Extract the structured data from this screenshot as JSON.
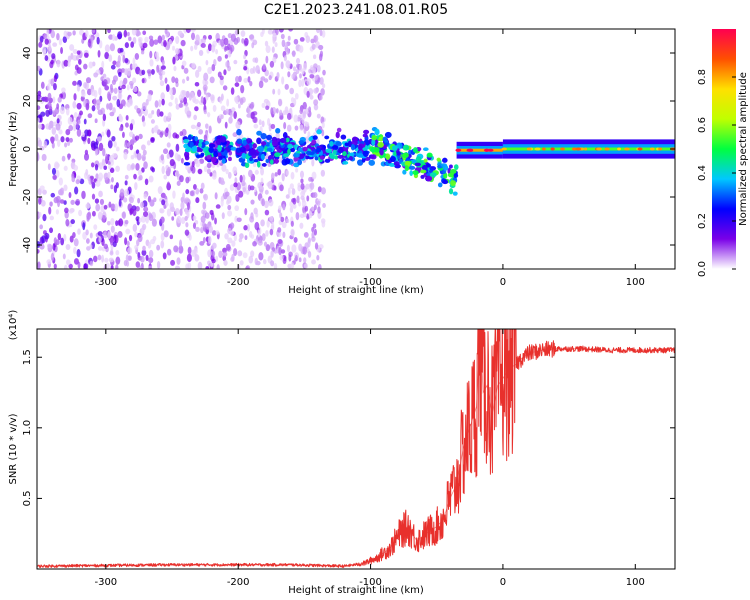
{
  "title": "C2E1.2023.241.08.01.R05",
  "chart_data": [
    {
      "type": "heatmap",
      "xlabel": "Height of straight line (km)",
      "ylabel": "Frequency (Hz)",
      "xlim": [
        -352,
        130
      ],
      "ylim": [
        -50,
        50
      ],
      "x_ticks": [
        -300,
        -200,
        -100,
        0,
        100
      ],
      "y_ticks": [
        -40,
        -20,
        0,
        20,
        40
      ],
      "colorbar": {
        "label": "Normalized spectral amplitude",
        "range": [
          0,
          1
        ],
        "ticks": [
          "0.0",
          "0.2",
          "0.4",
          "0.6",
          "0.8"
        ],
        "tick_values": [
          0.0,
          0.2,
          0.4,
          0.6,
          0.8
        ],
        "colors": [
          "#ffffff",
          "#7a00e8",
          "#0000ff",
          "#00c8ff",
          "#00ff40",
          "#c0ff00",
          "#ffe000",
          "#ff5000",
          "#ff0050"
        ]
      },
      "regions": [
        {
          "x_from": -352,
          "x_to": -135,
          "f_band": [
            -50,
            50
          ],
          "amplitude": 0.05,
          "pattern": "scattered noise"
        },
        {
          "x_from": -240,
          "x_to": -100,
          "f_band": [
            -6,
            6
          ],
          "amplitude": 0.35,
          "pattern": "noisy band"
        },
        {
          "x_from": -100,
          "x_to": -35,
          "f_band": [
            -22,
            5
          ],
          "amplitude": 0.45,
          "pattern": "descending band"
        },
        {
          "x_from": -35,
          "x_to": 0,
          "f_band": [
            -4,
            3
          ],
          "amplitude": 0.8,
          "pattern": "narrow line"
        },
        {
          "x_from": 0,
          "x_to": 130,
          "f_band": [
            -4,
            4
          ],
          "amplitude": 0.55,
          "pattern": "steady line"
        }
      ]
    },
    {
      "type": "line",
      "xlabel": "Height of straight line (km)",
      "ylabel": "SNR (10 * v/v)",
      "y_multiplier": "(x10⁴)",
      "xlim": [
        -352,
        130
      ],
      "ylim": [
        0,
        1.7
      ],
      "x_ticks": [
        -300,
        -200,
        -100,
        0,
        100
      ],
      "y_ticks": [
        "0.5",
        "1.0",
        "1.5"
      ],
      "y_tick_values": [
        0.5,
        1.0,
        1.5
      ],
      "series": [
        {
          "color": "#e8302c",
          "x": [
            -352,
            -300,
            -250,
            -200,
            -160,
            -120,
            -105,
            -95,
            -85,
            -78,
            -72,
            -65,
            -58,
            -50,
            -45,
            -40,
            -35,
            -30,
            -25,
            -20,
            -17,
            -15,
            -12,
            -8,
            -4,
            0,
            5,
            10,
            15,
            20,
            30,
            40,
            60,
            80,
            100,
            130
          ],
          "y": [
            0.02,
            0.025,
            0.03,
            0.03,
            0.03,
            0.02,
            0.04,
            0.08,
            0.15,
            0.25,
            0.3,
            0.2,
            0.25,
            0.3,
            0.35,
            0.5,
            0.6,
            0.85,
            1.0,
            1.15,
            1.68,
            1.25,
            1.3,
            1.1,
            1.3,
            1.35,
            1.42,
            1.45,
            1.5,
            1.53,
            1.55,
            1.56,
            1.56,
            1.55,
            1.55,
            1.55
          ]
        }
      ]
    }
  ]
}
